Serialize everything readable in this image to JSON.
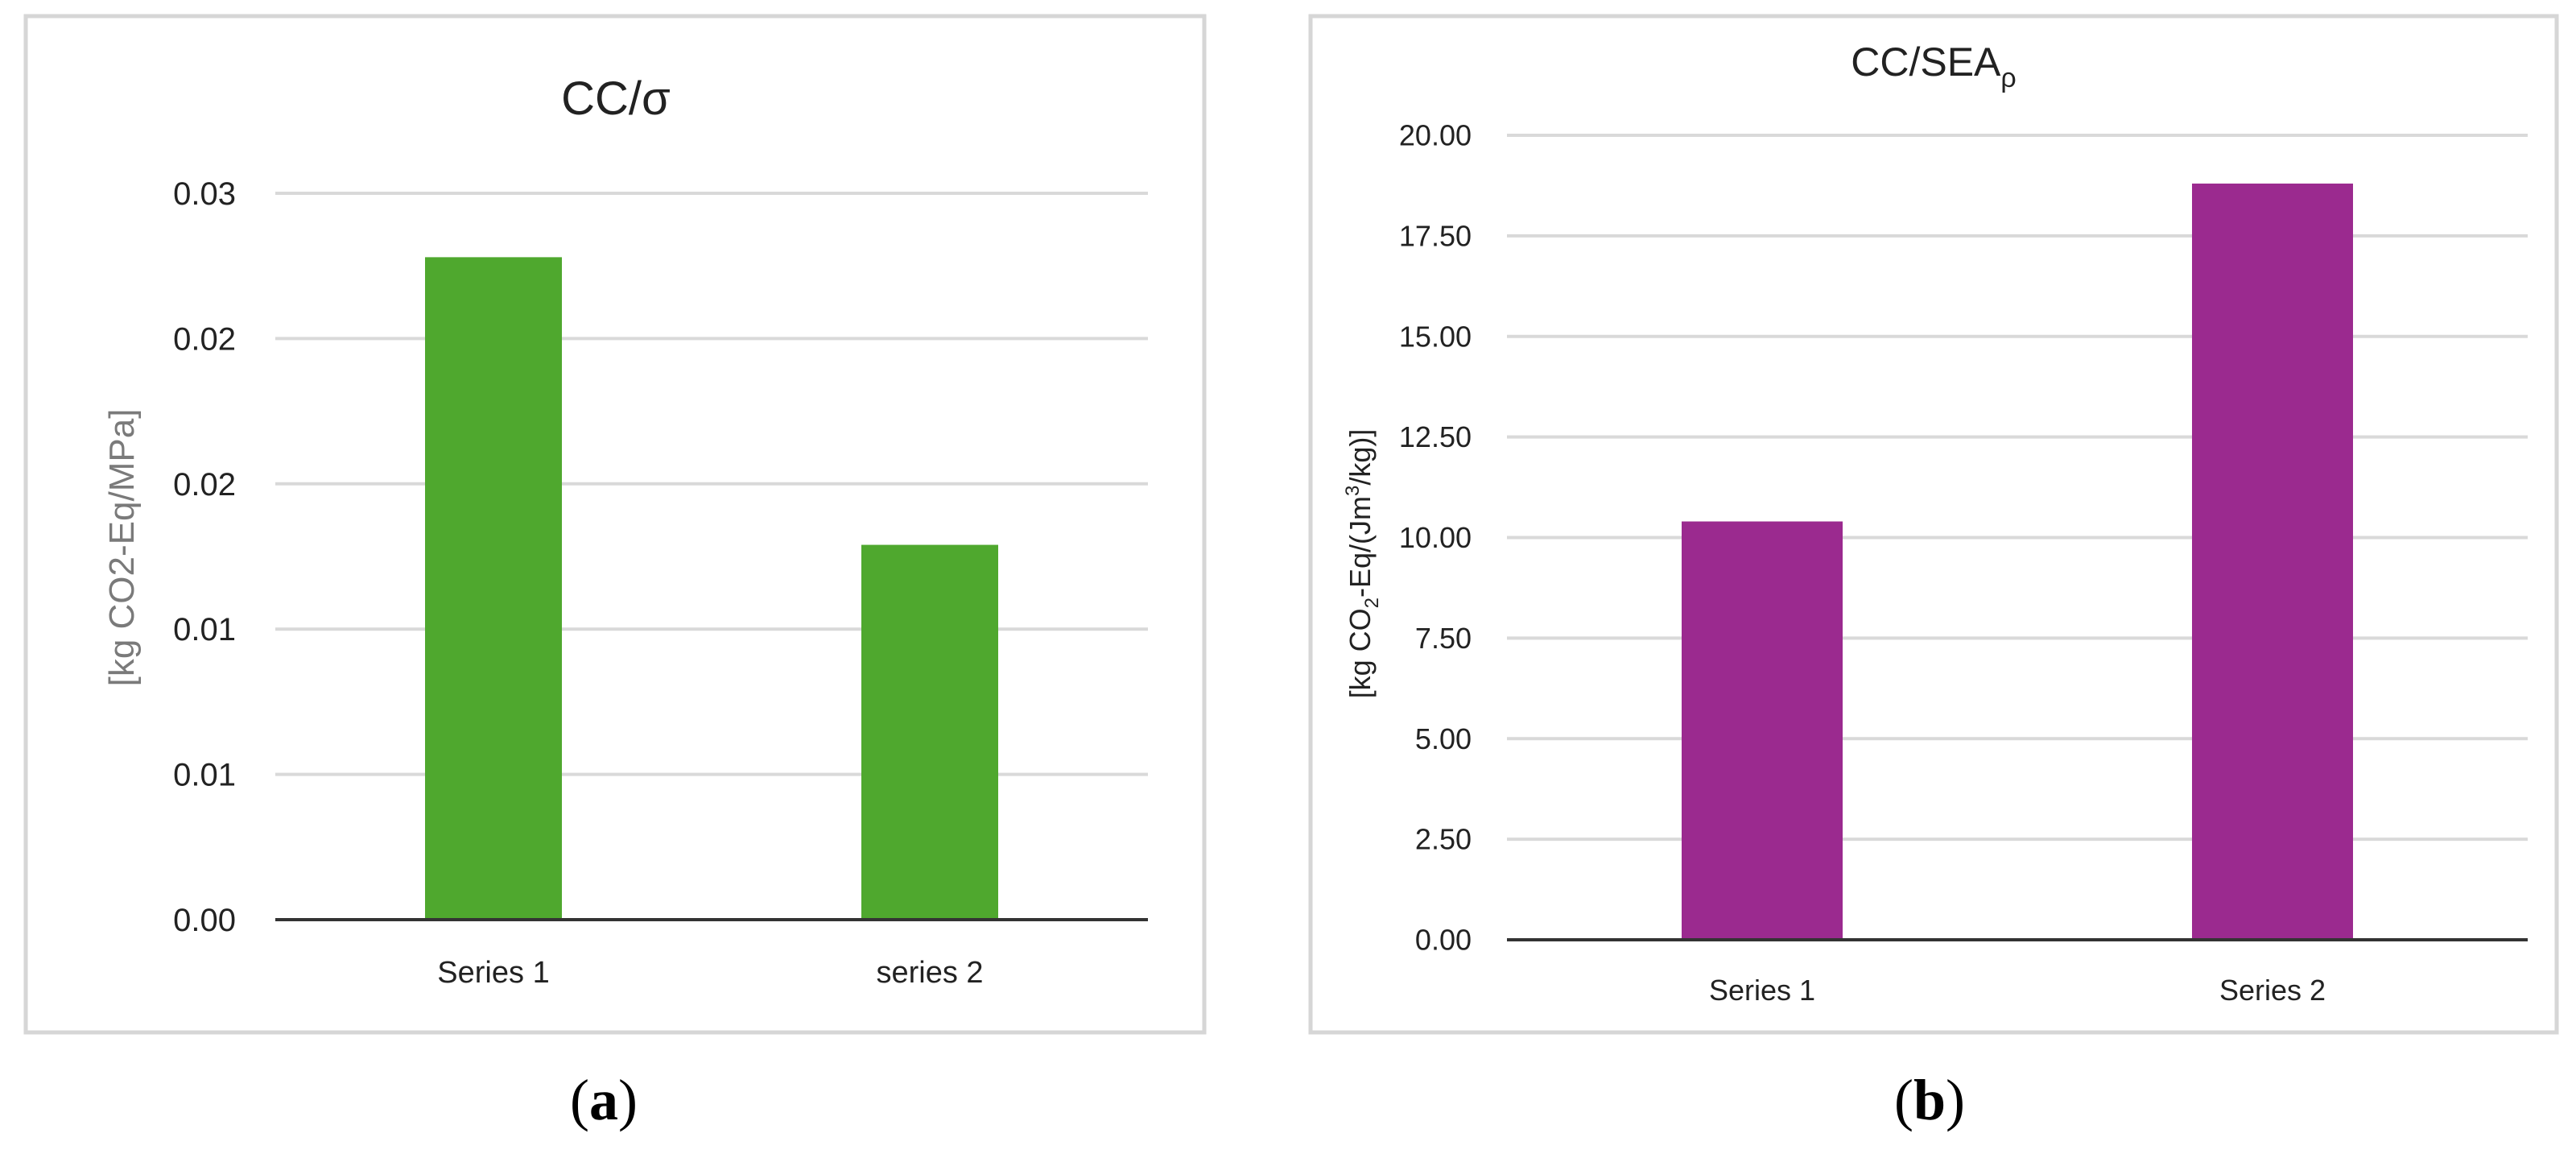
{
  "colors": {
    "chart_a_bar": "#4fa82e",
    "chart_b_bar": "#9b2a8f",
    "grid": "#d9d9d9",
    "axis": "#333333",
    "frame": "#d6d6d6"
  },
  "chart_data": [
    {
      "type": "bar",
      "title": "CC/σ",
      "ylabel": "[kg CO2-Eq/MPa]",
      "categories": [
        "Series 1",
        "series 2"
      ],
      "series": [
        {
          "values": [
            0.0228,
            0.0129
          ]
        }
      ],
      "ylim": [
        0,
        0.025
      ],
      "yticks": [
        0,
        0.005,
        0.01,
        0.015,
        0.02,
        0.025
      ],
      "ytick_labels": [
        "0.00",
        "0.01",
        "0.01",
        "0.02",
        "0.02",
        "0.03"
      ],
      "grid": true
    },
    {
      "type": "bar",
      "title": "CC/SEA",
      "title_subscript": "ρ",
      "ylabel_parts": [
        "[kg CO",
        "2",
        "-Eq/(Jm",
        "3",
        "/kg)]"
      ],
      "categories": [
        "Series 1",
        "Series 2"
      ],
      "series": [
        {
          "values": [
            10.4,
            18.8
          ]
        }
      ],
      "ylim": [
        0,
        20
      ],
      "yticks": [
        0,
        2.5,
        5,
        7.5,
        10,
        12.5,
        15,
        17.5,
        20
      ],
      "ytick_labels": [
        "0.00",
        "2.50",
        "5.00",
        "7.50",
        "10.00",
        "12.50",
        "15.00",
        "17.50",
        "20.00"
      ],
      "grid": true
    }
  ],
  "captions": {
    "a": "a",
    "b": "b"
  }
}
